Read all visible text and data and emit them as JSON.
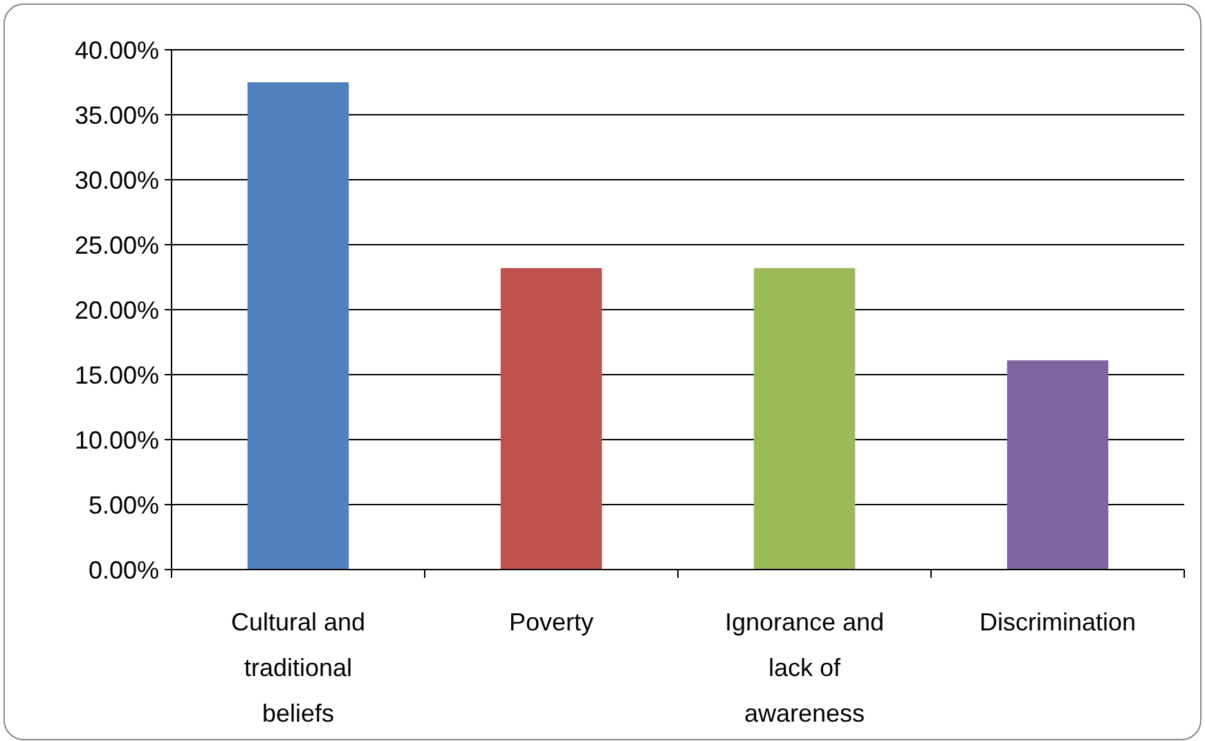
{
  "chart_data": {
    "type": "bar",
    "categories": [
      "Cultural and traditional beliefs",
      "Poverty",
      "Ignorance and lack of awareness",
      "Discrimination"
    ],
    "values": [
      37.5,
      23.2,
      23.2,
      16.1
    ],
    "colors": [
      "#4f81bd",
      "#c0504d",
      "#9bbb59",
      "#8064a2"
    ],
    "ylim": [
      0,
      40
    ],
    "yticks": [
      {
        "value": 0,
        "label": "0.00%"
      },
      {
        "value": 5,
        "label": "5.00%"
      },
      {
        "value": 10,
        "label": "10.00%"
      },
      {
        "value": 15,
        "label": "15.00%"
      },
      {
        "value": 20,
        "label": "20.00%"
      },
      {
        "value": 25,
        "label": "25.00%"
      },
      {
        "value": 30,
        "label": "30.00%"
      },
      {
        "value": 35,
        "label": "35.00%"
      },
      {
        "value": 40,
        "label": "40.00%"
      }
    ],
    "grid": "y"
  }
}
